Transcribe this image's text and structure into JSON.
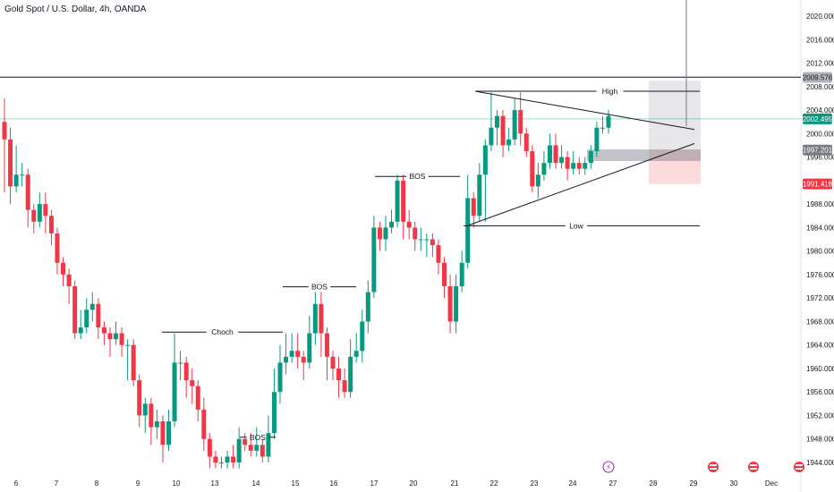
{
  "header": {
    "title": "Gold Spot / U.S. Dollar, 4h, OANDA"
  },
  "chart_data": {
    "type": "candlestick",
    "title": "Gold Spot / U.S. Dollar, 4h, OANDA",
    "ylim": [
      1943.5,
      2021.5
    ],
    "y_ticks": [
      "2020.000",
      "2016.000",
      "2012.000",
      "2008.000",
      "2004.000",
      "2000.000",
      "1996.000",
      "1988.000",
      "1984.000",
      "1980.000",
      "1976.000",
      "1972.000",
      "1968.000",
      "1964.000",
      "1960.000",
      "1956.000",
      "1952.000",
      "1948.000",
      "1944.000"
    ],
    "x_ticks": [
      "6",
      "7",
      "8",
      "9",
      "10",
      "13",
      "14",
      "15",
      "16",
      "17",
      "20",
      "21",
      "22",
      "23",
      "24",
      "27",
      "28",
      "29",
      "30",
      "Dec"
    ],
    "price_tags": [
      {
        "value": "2009.576",
        "color": "#b2b5be",
        "text_color": "#131722"
      },
      {
        "value": "2002.495",
        "color": "#089981",
        "text_color": "#ffffff"
      },
      {
        "value": "1997.201",
        "color": "#787b86",
        "text_color": "#ffffff"
      },
      {
        "value": "1991.418",
        "color": "#f23645",
        "text_color": "#ffffff"
      }
    ],
    "candles": [
      [
        2002,
        1999,
        2006,
        1990
      ],
      [
        1999,
        1991,
        2001,
        1988
      ],
      [
        1991,
        1993,
        1998,
        1990
      ],
      [
        1993,
        1993,
        1995,
        1991
      ],
      [
        1993,
        1987,
        1994,
        1984
      ],
      [
        1987,
        1985,
        1988,
        1983
      ],
      [
        1985,
        1988,
        1990,
        1984
      ],
      [
        1988,
        1986,
        1990,
        1983
      ],
      [
        1986,
        1983,
        1987,
        1981
      ],
      [
        1983,
        1978,
        1984,
        1976
      ],
      [
        1978,
        1976,
        1979,
        1974
      ],
      [
        1976,
        1974,
        1977,
        1971
      ],
      [
        1974,
        1966,
        1975,
        1965
      ],
      [
        1966,
        1967,
        1970,
        1965
      ],
      [
        1967,
        1970,
        1972,
        1966
      ],
      [
        1970,
        1971,
        1973,
        1968
      ],
      [
        1971,
        1967,
        1972,
        1965
      ],
      [
        1967,
        1966,
        1968,
        1964
      ],
      [
        1966,
        1965,
        1967,
        1962
      ],
      [
        1965,
        1966,
        1968,
        1964
      ],
      [
        1966,
        1964,
        1967,
        1962
      ],
      [
        1964,
        1964,
        1965,
        1958
      ],
      [
        1964,
        1958,
        1965,
        1957
      ],
      [
        1958,
        1952,
        1959,
        1950
      ],
      [
        1952,
        1954,
        1955,
        1949
      ],
      [
        1954,
        1950,
        1955,
        1947
      ],
      [
        1950,
        1951,
        1953,
        1948
      ],
      [
        1951,
        1947,
        1952,
        1944
      ],
      [
        1947,
        1951,
        1953,
        1946
      ],
      [
        1951,
        1961,
        1966,
        1950
      ],
      [
        1961,
        1961,
        1963,
        1958
      ],
      [
        1961,
        1958,
        1962,
        1955
      ],
      [
        1958,
        1957,
        1960,
        1954
      ],
      [
        1957,
        1953,
        1958,
        1951
      ],
      [
        1953,
        1948,
        1955,
        1946
      ],
      [
        1948,
        1945,
        1949,
        1943
      ],
      [
        1945,
        1944,
        1946,
        1943
      ],
      [
        1944,
        1944,
        1945,
        1943
      ],
      [
        1944,
        1945,
        1946,
        1943
      ],
      [
        1945,
        1944,
        1947,
        1943
      ],
      [
        1944,
        1948,
        1950,
        1943
      ],
      [
        1948,
        1947,
        1949,
        1946
      ],
      [
        1947,
        1946,
        1949,
        1945
      ],
      [
        1946,
        1947,
        1950,
        1945
      ],
      [
        1947,
        1945,
        1948,
        1944
      ],
      [
        1945,
        1949,
        1952,
        1944
      ],
      [
        1949,
        1956,
        1960,
        1948
      ],
      [
        1956,
        1961,
        1964,
        1954
      ],
      [
        1961,
        1962,
        1966,
        1959
      ],
      [
        1962,
        1963,
        1966,
        1961
      ],
      [
        1963,
        1962,
        1966,
        1960
      ],
      [
        1962,
        1961,
        1963,
        1958
      ],
      [
        1961,
        1966,
        1969,
        1960
      ],
      [
        1966,
        1971,
        1973,
        1964
      ],
      [
        1971,
        1966,
        1973,
        1962
      ],
      [
        1966,
        1962,
        1967,
        1958
      ],
      [
        1962,
        1960,
        1963,
        1958
      ],
      [
        1960,
        1958,
        1962,
        1955
      ],
      [
        1958,
        1956,
        1960,
        1955
      ],
      [
        1956,
        1962,
        1965,
        1955
      ],
      [
        1962,
        1963,
        1966,
        1961
      ],
      [
        1963,
        1968,
        1970,
        1961
      ],
      [
        1968,
        1973,
        1975,
        1966
      ],
      [
        1973,
        1984,
        1986,
        1972
      ],
      [
        1984,
        1982,
        1985,
        1980
      ],
      [
        1982,
        1984,
        1986,
        1980
      ],
      [
        1984,
        1985,
        1987,
        1983
      ],
      [
        1985,
        1992,
        1993,
        1984
      ],
      [
        1992,
        1985,
        1993,
        1982
      ],
      [
        1985,
        1984,
        1987,
        1982
      ],
      [
        1984,
        1982,
        1985,
        1980
      ],
      [
        1982,
        1982,
        1984,
        1980
      ],
      [
        1982,
        1982,
        1983,
        1979
      ],
      [
        1982,
        1981,
        1983,
        1979
      ],
      [
        1981,
        1978,
        1982,
        1976
      ],
      [
        1978,
        1974,
        1979,
        1972
      ],
      [
        1974,
        1968,
        1976,
        1966
      ],
      [
        1968,
        1974,
        1976,
        1966
      ],
      [
        1974,
        1978,
        1980,
        1973
      ],
      [
        1978,
        1989,
        1993,
        1977
      ],
      [
        1989,
        1986,
        1990,
        1984
      ],
      [
        1986,
        1993,
        1995,
        1985
      ],
      [
        1993,
        1998,
        1999,
        1985
      ],
      [
        1998,
        2001,
        2007,
        1997
      ],
      [
        2001,
        2003,
        2004,
        1998
      ],
      [
        2003,
        1998,
        2004,
        1996
      ],
      [
        1998,
        1999,
        2001,
        1997
      ],
      [
        1999,
        2004,
        2006,
        1998
      ],
      [
        2004,
        2000,
        2007,
        1998
      ],
      [
        2000,
        1997,
        2001,
        1996
      ],
      [
        1997,
        1991,
        1998,
        1990
      ],
      [
        1991,
        1993,
        1995,
        1989
      ],
      [
        1993,
        1995,
        1997,
        1992
      ],
      [
        1995,
        1998,
        2000,
        1994
      ],
      [
        1998,
        1995,
        2000,
        1994
      ],
      [
        1995,
        1996,
        1998,
        1994
      ],
      [
        1996,
        1994,
        1997,
        1992
      ],
      [
        1994,
        1995,
        1997,
        1993
      ],
      [
        1995,
        1994,
        1996,
        1993
      ],
      [
        1994,
        1995,
        1996,
        1993
      ],
      [
        1995,
        1997,
        1998,
        1994
      ],
      [
        1997,
        2001,
        2002,
        1996
      ],
      [
        2001,
        2001,
        2003,
        2000
      ],
      [
        2001,
        2003,
        2004,
        2000
      ]
    ],
    "annotations": [
      {
        "label": "High",
        "price": 2007.2
      },
      {
        "label": "Low",
        "price": 1984.3
      },
      {
        "label": "BOS",
        "price": 1992.7
      },
      {
        "label": "BOS",
        "price": 1973.9
      },
      {
        "label": "Choch",
        "price": 1966.2
      },
      {
        "label": "BOS",
        "price": 1948.3
      }
    ]
  }
}
